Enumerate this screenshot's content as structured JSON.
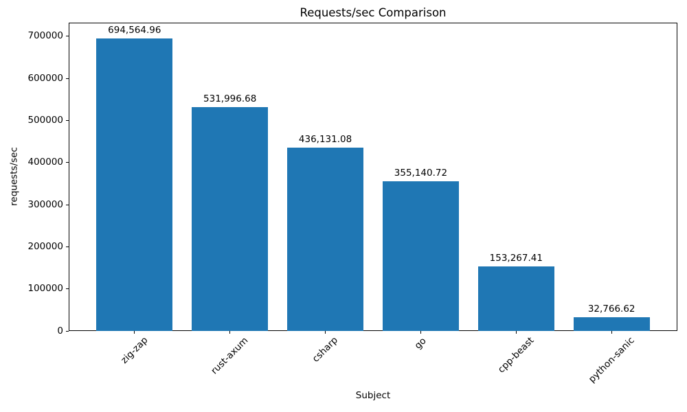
{
  "chart_data": {
    "type": "bar",
    "title": "Requests/sec Comparison",
    "xlabel": "Subject",
    "ylabel": "requests/sec",
    "categories": [
      "zig-zap",
      "rust-axum",
      "csharp",
      "go",
      "cpp-beast",
      "python-sanic"
    ],
    "values": [
      694564.96,
      531996.68,
      436131.08,
      355140.72,
      153267.41,
      32766.62
    ],
    "value_labels": [
      "694,564.96",
      "531,996.68",
      "436,131.08",
      "355,140.72",
      "153,267.41",
      "32,766.62"
    ],
    "yticks": [
      0,
      100000,
      200000,
      300000,
      400000,
      500000,
      600000,
      700000
    ],
    "ytick_labels": [
      "0",
      "100000",
      "200000",
      "300000",
      "400000",
      "500000",
      "600000",
      "700000"
    ],
    "ylim": [
      0,
      732500
    ],
    "xlim": [
      -0.69,
      5.69
    ],
    "bar_width": 0.8,
    "bar_color": "#1f77b4",
    "text_color": "#000000",
    "grid": false,
    "legend_position": "none",
    "xtick_rotation": 45
  }
}
